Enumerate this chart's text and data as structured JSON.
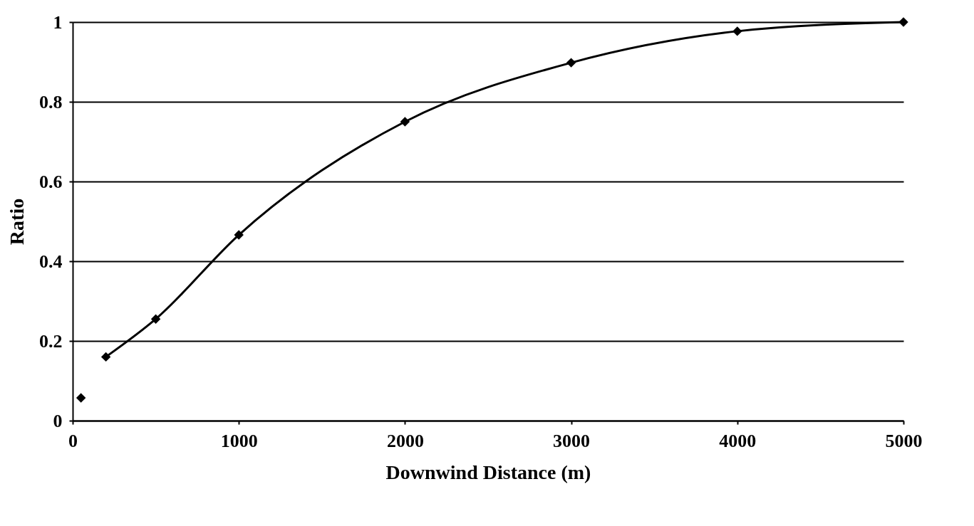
{
  "chart_data": {
    "type": "scatter",
    "xlabel": "Downwind Distance (m)",
    "ylabel": "Ratio",
    "xlim": [
      0,
      5000
    ],
    "xticks": [
      0,
      1000,
      2000,
      3000,
      4000,
      5000
    ],
    "ylim": [
      0,
      1
    ],
    "yticks": [
      0,
      0.2,
      0.4,
      0.6,
      0.8,
      1
    ],
    "grid": "y",
    "series": [
      {
        "color": "#000000",
        "marker": "diamond",
        "x": [
          50,
          200,
          500,
          1000,
          2000,
          3000,
          4000,
          5000
        ],
        "values": [
          0.057,
          0.16,
          0.255,
          0.466,
          0.75,
          0.898,
          0.977,
          1.0
        ]
      },
      {
        "type": "line",
        "color": "#000000",
        "marker": "none",
        "line_style": "solid",
        "x": [
          200,
          500,
          1000,
          2000,
          3000,
          4000,
          5000
        ],
        "values": [
          0.16,
          0.255,
          0.466,
          0.75,
          0.898,
          0.977,
          1.0
        ]
      }
    ]
  }
}
